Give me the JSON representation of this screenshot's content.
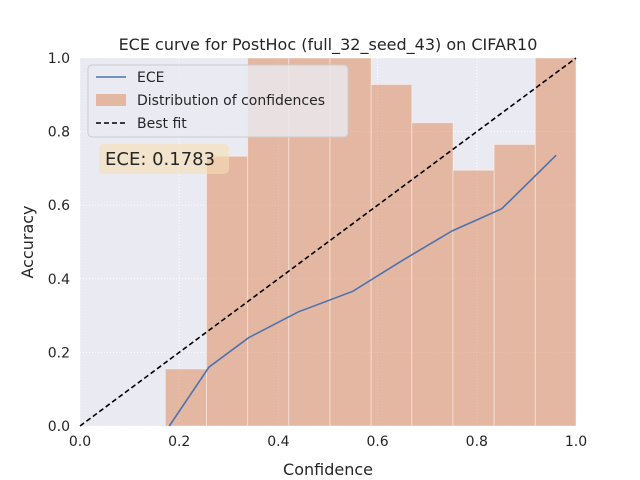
{
  "chart_data": {
    "type": "bar",
    "title": "ECE curve for PostHoc (full_32_seed_43) on CIFAR10",
    "xlabel": "Confidence",
    "ylabel": "Accuracy",
    "xlim": [
      0,
      1
    ],
    "ylim": [
      0,
      1
    ],
    "grid": true,
    "legend_position": "top-left",
    "x_ticks": [
      "0.0",
      "0.2",
      "0.4",
      "0.6",
      "0.8",
      "1.0"
    ],
    "y_ticks": [
      "0.0",
      "0.2",
      "0.4",
      "0.6",
      "0.8",
      "1.0"
    ],
    "annotation": "ECE: 0.1783",
    "histogram": {
      "name": "Distribution of confidences",
      "color": "#dd8452",
      "bins": [
        {
          "x0": 0.172,
          "x1": 0.255,
          "height": 0.155
        },
        {
          "x0": 0.255,
          "x1": 0.338,
          "height": 0.733
        },
        {
          "x0": 0.338,
          "x1": 0.421,
          "height": 1.0
        },
        {
          "x0": 0.421,
          "x1": 0.504,
          "height": 1.0
        },
        {
          "x0": 0.504,
          "x1": 0.587,
          "height": 1.0
        },
        {
          "x0": 0.587,
          "x1": 0.669,
          "height": 0.928
        },
        {
          "x0": 0.669,
          "x1": 0.752,
          "height": 0.824
        },
        {
          "x0": 0.752,
          "x1": 0.835,
          "height": 0.695
        },
        {
          "x0": 0.835,
          "x1": 0.918,
          "height": 0.765
        },
        {
          "x0": 0.918,
          "x1": 1.0,
          "height": 1.0
        }
      ]
    },
    "series": [
      {
        "name": "ECE",
        "color": "#4c72b0",
        "x": [
          0.18,
          0.26,
          0.34,
          0.44,
          0.55,
          0.65,
          0.75,
          0.85,
          0.96
        ],
        "y": [
          0.0,
          0.16,
          0.24,
          0.31,
          0.366,
          0.45,
          0.53,
          0.59,
          0.736
        ]
      },
      {
        "name": "Best fit",
        "color": "#000000",
        "style": "dashed",
        "x": [
          0.0,
          1.0
        ],
        "y": [
          0.0,
          1.0
        ]
      }
    ]
  }
}
